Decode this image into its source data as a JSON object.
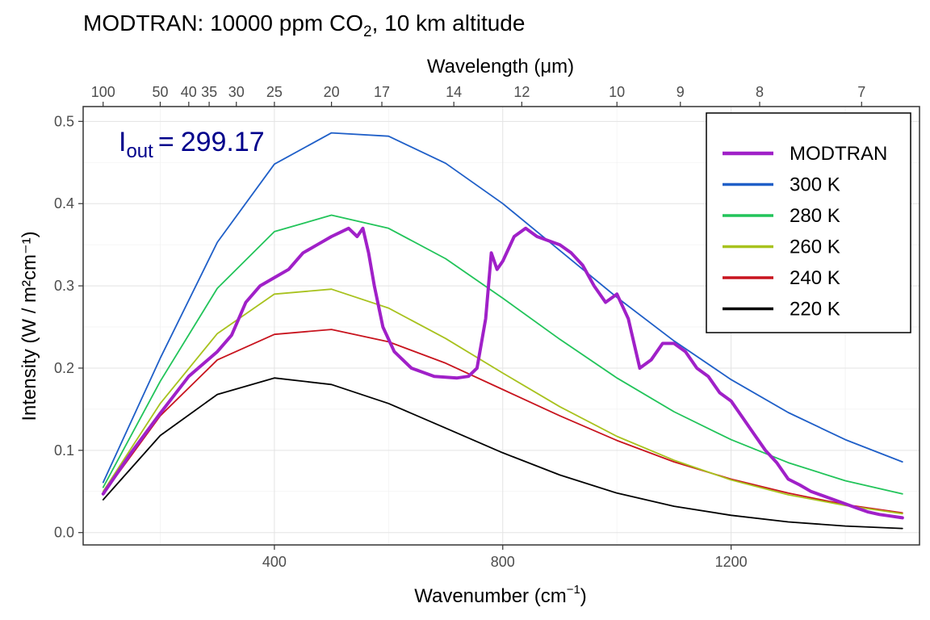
{
  "chart_data": {
    "type": "line",
    "title_main": "MODTRAN: 10000 ppm CO",
    "title_sub": "2",
    "title_tail": ", 10 km altitude",
    "xlabel_main": "Wavenumber (cm",
    "xlabel_sup": "−1",
    "xlabel_tail": ")",
    "ylabel": "Intensity (W / m²cm⁻¹)",
    "top_axis_label": "Wavelength (μm)",
    "xlim": [
      65,
      1530
    ],
    "ylim": [
      -0.015,
      0.518
    ],
    "x_ticks": [
      400,
      800,
      1200
    ],
    "x_tick_labels": [
      "400",
      "800",
      "1200"
    ],
    "y_ticks": [
      0.0,
      0.1,
      0.2,
      0.3,
      0.4,
      0.5
    ],
    "y_tick_labels": [
      "0.0",
      "0.1",
      "0.2",
      "0.3",
      "0.4",
      "0.5"
    ],
    "top_ticks_um": [
      100,
      50,
      40,
      35,
      30,
      25,
      20,
      17,
      14,
      12,
      10,
      9,
      8,
      7
    ],
    "top_tick_labels": [
      "100",
      "50",
      "40",
      "35",
      "30",
      "25",
      "20",
      "17",
      "14",
      "12",
      "10",
      "9",
      "8",
      "7"
    ],
    "grid": true,
    "legend_position": "top-right",
    "annotation": {
      "I_main": "I",
      "I_sub": "out",
      "eq": "=",
      "value": "299.17"
    },
    "series": [
      {
        "name": "MODTRAN",
        "color": "#a020c8",
        "x": [
          100,
          150,
          200,
          250,
          300,
          325,
          350,
          375,
          400,
          425,
          450,
          475,
          500,
          515,
          530,
          545,
          555,
          565,
          575,
          590,
          610,
          640,
          680,
          720,
          740,
          755,
          770,
          780,
          790,
          800,
          820,
          840,
          860,
          880,
          900,
          920,
          940,
          960,
          980,
          1000,
          1020,
          1040,
          1060,
          1080,
          1100,
          1120,
          1140,
          1160,
          1180,
          1200,
          1220,
          1240,
          1260,
          1280,
          1300,
          1320,
          1340,
          1360,
          1380,
          1400,
          1420,
          1440,
          1460,
          1480,
          1500
        ],
        "values": [
          0.047,
          0.098,
          0.145,
          0.19,
          0.22,
          0.24,
          0.28,
          0.3,
          0.31,
          0.32,
          0.34,
          0.35,
          0.36,
          0.365,
          0.37,
          0.36,
          0.37,
          0.34,
          0.3,
          0.25,
          0.22,
          0.2,
          0.19,
          0.188,
          0.19,
          0.2,
          0.26,
          0.34,
          0.32,
          0.33,
          0.36,
          0.37,
          0.36,
          0.355,
          0.35,
          0.34,
          0.325,
          0.3,
          0.28,
          0.29,
          0.26,
          0.2,
          0.21,
          0.23,
          0.23,
          0.22,
          0.2,
          0.19,
          0.17,
          0.16,
          0.14,
          0.12,
          0.1,
          0.085,
          0.065,
          0.058,
          0.05,
          0.045,
          0.04,
          0.035,
          0.03,
          0.025,
          0.022,
          0.02,
          0.018
        ]
      },
      {
        "name": "300 K",
        "color": "#1f5fc8",
        "x": [
          100,
          200,
          300,
          400,
          500,
          600,
          700,
          800,
          900,
          1000,
          1100,
          1200,
          1300,
          1400,
          1500
        ],
        "values": [
          0.061,
          0.212,
          0.353,
          0.448,
          0.486,
          0.482,
          0.449,
          0.4,
          0.343,
          0.286,
          0.233,
          0.186,
          0.146,
          0.113,
          0.086
        ]
      },
      {
        "name": "280 K",
        "color": "#22c45a",
        "x": [
          100,
          200,
          300,
          400,
          500,
          600,
          700,
          800,
          900,
          1000,
          1100,
          1200,
          1300,
          1400,
          1500
        ],
        "values": [
          0.055,
          0.184,
          0.297,
          0.366,
          0.386,
          0.37,
          0.333,
          0.285,
          0.235,
          0.188,
          0.147,
          0.113,
          0.085,
          0.063,
          0.047
        ]
      },
      {
        "name": "260 K",
        "color": "#a8c21e",
        "x": [
          100,
          200,
          300,
          400,
          500,
          600,
          700,
          800,
          900,
          1000,
          1100,
          1200,
          1300,
          1400,
          1500
        ],
        "values": [
          0.05,
          0.157,
          0.242,
          0.29,
          0.296,
          0.273,
          0.236,
          0.194,
          0.153,
          0.117,
          0.088,
          0.064,
          0.046,
          0.033,
          0.023
        ]
      },
      {
        "name": "240 K",
        "color": "#c8141e",
        "x": [
          100,
          200,
          300,
          400,
          500,
          600,
          700,
          800,
          900,
          1000,
          1100,
          1200,
          1300,
          1400,
          1500
        ],
        "values": [
          0.047,
          0.142,
          0.21,
          0.241,
          0.247,
          0.232,
          0.206,
          0.174,
          0.142,
          0.112,
          0.086,
          0.065,
          0.048,
          0.034,
          0.024
        ]
      },
      {
        "name": "220 K",
        "color": "#000000",
        "x": [
          100,
          200,
          300,
          400,
          500,
          600,
          700,
          800,
          900,
          1000,
          1100,
          1200,
          1300,
          1400,
          1500
        ],
        "values": [
          0.04,
          0.118,
          0.168,
          0.188,
          0.18,
          0.157,
          0.127,
          0.097,
          0.07,
          0.048,
          0.032,
          0.021,
          0.013,
          0.008,
          0.005
        ]
      }
    ]
  }
}
